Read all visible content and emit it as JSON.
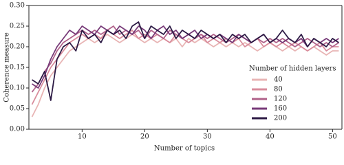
{
  "chart_data": {
    "type": "line",
    "x_label": "Number of topics",
    "y_label": "Coherence measure",
    "legend_title": "Number of hidden layers",
    "legend": "lower right",
    "xlim": [
      1.5,
      51.5
    ],
    "ylim": [
      0,
      0.3
    ],
    "xticks": [
      10,
      20,
      30,
      40,
      50
    ],
    "yticks": [
      {
        "value": 0,
        "label": "0.00"
      },
      {
        "value": 0.05,
        "label": "0.05"
      },
      {
        "value": 0.1,
        "label": "0.10"
      },
      {
        "value": 0.15,
        "label": "0.15"
      },
      {
        "value": 0.2,
        "label": "0.20"
      },
      {
        "value": 0.25,
        "label": "0.25"
      },
      {
        "value": 0.3,
        "label": "0.30"
      }
    ],
    "x": [
      2,
      3,
      4,
      5,
      6,
      7,
      8,
      9,
      10,
      11,
      12,
      13,
      14,
      15,
      16,
      17,
      18,
      19,
      20,
      21,
      22,
      23,
      24,
      25,
      26,
      27,
      28,
      29,
      30,
      31,
      32,
      33,
      34,
      35,
      36,
      37,
      38,
      39,
      40,
      41,
      42,
      43,
      44,
      45,
      46,
      47,
      48,
      49,
      50,
      51
    ],
    "series": [
      {
        "name": "40",
        "color": "#e8b4b4",
        "values": [
          0.03,
          0.06,
          0.1,
          0.13,
          0.15,
          0.17,
          0.19,
          0.2,
          0.21,
          0.22,
          0.21,
          0.22,
          0.23,
          0.22,
          0.21,
          0.22,
          0.23,
          0.22,
          0.21,
          0.22,
          0.21,
          0.22,
          0.21,
          0.22,
          0.2,
          0.22,
          0.21,
          0.22,
          0.21,
          0.2,
          0.21,
          0.2,
          0.21,
          0.2,
          0.21,
          0.2,
          0.19,
          0.2,
          0.21,
          0.2,
          0.19,
          0.2,
          0.19,
          0.2,
          0.19,
          0.2,
          0.19,
          0.18,
          0.19,
          0.19
        ]
      },
      {
        "name": "80",
        "color": "#d98c9c",
        "values": [
          0.06,
          0.09,
          0.12,
          0.15,
          0.17,
          0.19,
          0.21,
          0.22,
          0.23,
          0.22,
          0.23,
          0.22,
          0.24,
          0.23,
          0.22,
          0.23,
          0.24,
          0.22,
          0.23,
          0.22,
          0.23,
          0.22,
          0.21,
          0.23,
          0.22,
          0.21,
          0.22,
          0.23,
          0.21,
          0.22,
          0.21,
          0.22,
          0.21,
          0.22,
          0.2,
          0.21,
          0.22,
          0.2,
          0.21,
          0.2,
          0.21,
          0.2,
          0.21,
          0.2,
          0.19,
          0.2,
          0.21,
          0.19,
          0.2,
          0.2
        ]
      },
      {
        "name": "120",
        "color": "#b0628a",
        "values": [
          0.09,
          0.11,
          0.14,
          0.16,
          0.19,
          0.21,
          0.22,
          0.23,
          0.24,
          0.23,
          0.24,
          0.23,
          0.24,
          0.25,
          0.23,
          0.24,
          0.23,
          0.24,
          0.22,
          0.24,
          0.23,
          0.22,
          0.24,
          0.23,
          0.22,
          0.23,
          0.22,
          0.23,
          0.22,
          0.23,
          0.22,
          0.21,
          0.22,
          0.23,
          0.22,
          0.21,
          0.22,
          0.21,
          0.22,
          0.21,
          0.22,
          0.21,
          0.2,
          0.21,
          0.22,
          0.21,
          0.2,
          0.21,
          0.2,
          0.21
        ]
      },
      {
        "name": "160",
        "color": "#773a78",
        "values": [
          0.11,
          0.1,
          0.13,
          0.17,
          0.2,
          0.22,
          0.24,
          0.23,
          0.25,
          0.24,
          0.23,
          0.25,
          0.24,
          0.23,
          0.25,
          0.24,
          0.23,
          0.25,
          0.24,
          0.22,
          0.24,
          0.25,
          0.23,
          0.24,
          0.22,
          0.23,
          0.24,
          0.22,
          0.23,
          0.22,
          0.23,
          0.22,
          0.21,
          0.23,
          0.22,
          0.21,
          0.22,
          0.23,
          0.21,
          0.22,
          0.21,
          0.22,
          0.21,
          0.22,
          0.2,
          0.22,
          0.21,
          0.22,
          0.21,
          0.22
        ]
      },
      {
        "name": "200",
        "color": "#2c1a44",
        "values": [
          0.12,
          0.11,
          0.14,
          0.07,
          0.17,
          0.2,
          0.21,
          0.19,
          0.24,
          0.22,
          0.23,
          0.21,
          0.24,
          0.23,
          0.24,
          0.22,
          0.25,
          0.26,
          0.22,
          0.25,
          0.24,
          0.23,
          0.25,
          0.22,
          0.24,
          0.23,
          0.22,
          0.24,
          0.23,
          0.22,
          0.23,
          0.21,
          0.23,
          0.22,
          0.23,
          0.21,
          0.22,
          0.23,
          0.21,
          0.22,
          0.24,
          0.22,
          0.21,
          0.23,
          0.2,
          0.22,
          0.21,
          0.2,
          0.22,
          0.21
        ]
      }
    ]
  }
}
